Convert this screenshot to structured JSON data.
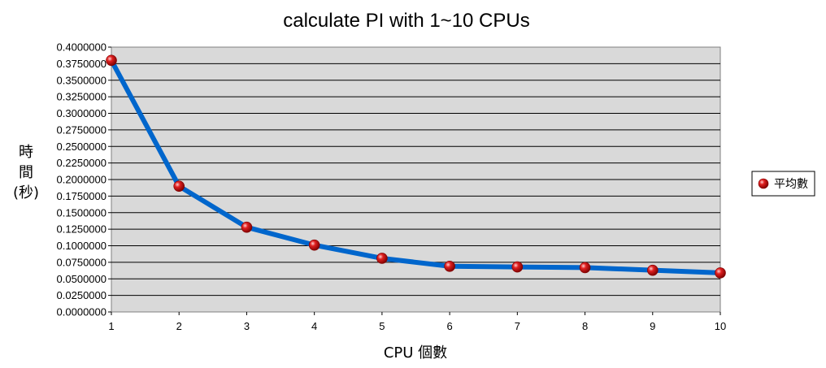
{
  "chart_data": {
    "type": "line",
    "title": "calculate PI with 1~10 CPUs",
    "xlabel": "CPU 個數",
    "ylabel_lines": [
      "時",
      "間",
      "(秒)"
    ],
    "x": [
      1,
      2,
      3,
      4,
      5,
      6,
      7,
      8,
      9,
      10
    ],
    "xlim": [
      1,
      10
    ],
    "ylim": [
      0,
      0.4
    ],
    "y_ticks": [
      "0.0000000",
      "0.0250000",
      "0.0500000",
      "0.0750000",
      "0.1000000",
      "0.1250000",
      "0.1500000",
      "0.1750000",
      "0.2000000",
      "0.2250000",
      "0.2500000",
      "0.2750000",
      "0.3000000",
      "0.3250000",
      "0.3500000",
      "0.3750000",
      "0.4000000"
    ],
    "grid": true,
    "legend_position": "right",
    "colors": {
      "line": "#0066CC",
      "marker": "#CC0000",
      "plot_background": "#D9D9D9",
      "gridline": "#000000"
    },
    "series": [
      {
        "name": "平均數",
        "values": [
          0.38,
          0.19,
          0.128,
          0.101,
          0.081,
          0.069,
          0.068,
          0.067,
          0.063,
          0.059
        ]
      }
    ]
  }
}
